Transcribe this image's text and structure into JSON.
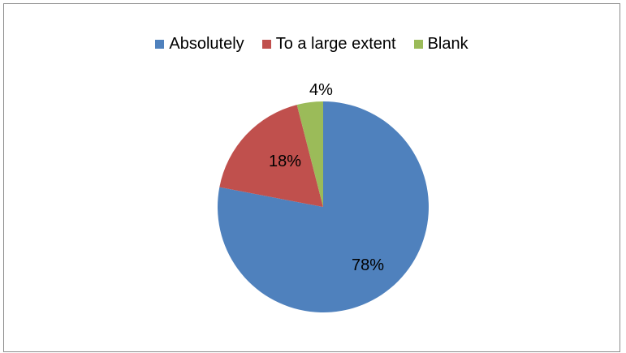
{
  "chart_data": {
    "type": "pie",
    "title": "",
    "slices": [
      {
        "name": "Absolutely",
        "value": 78,
        "label": "78%",
        "color": "#4f81bd"
      },
      {
        "name": "To a large extent",
        "value": 18,
        "label": "18%",
        "color": "#c0504d"
      },
      {
        "name": "Blank",
        "value": 4,
        "label": "4%",
        "color": "#9bbb59"
      }
    ],
    "legend_position": "top"
  }
}
